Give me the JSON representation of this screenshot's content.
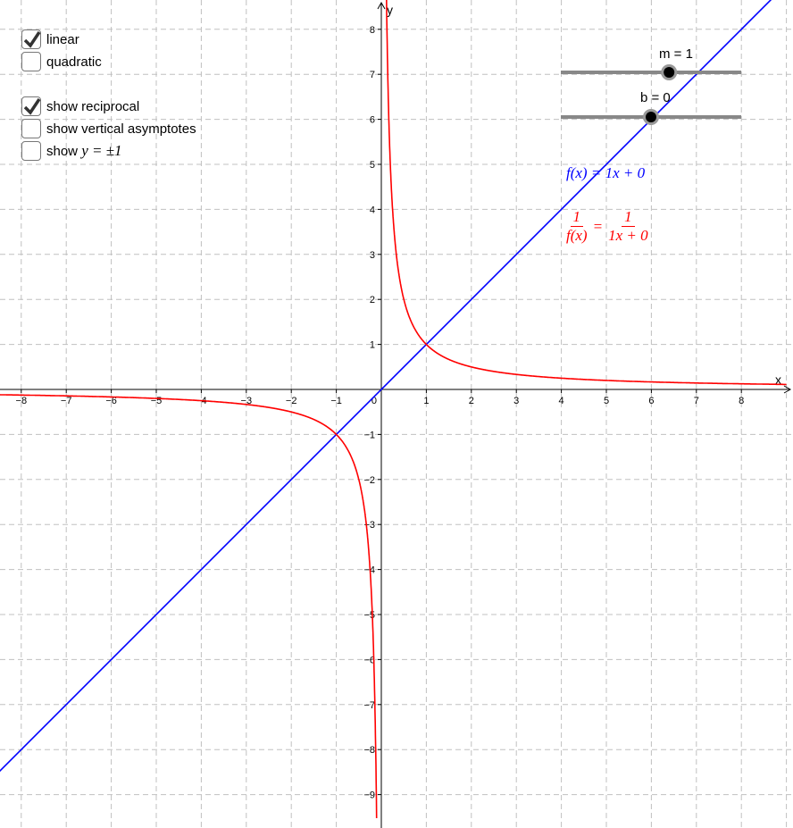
{
  "checkboxes": [
    {
      "label": "linear",
      "checked": true
    },
    {
      "label": "quadratic",
      "checked": false
    },
    {
      "label": "show reciprocal",
      "checked": true
    },
    {
      "label": "show vertical asymptotes",
      "checked": false
    },
    {
      "label": "show",
      "math": "y = ±1",
      "checked": false
    }
  ],
  "sliders": [
    {
      "label": "m = 1",
      "value": 1,
      "min": -5,
      "max": 5
    },
    {
      "label": "b = 0",
      "value": 0,
      "min": -5,
      "max": 5
    }
  ],
  "equations": {
    "f": "f(x) = 1x + 0",
    "recip_lhs_num": "1",
    "recip_lhs_den": "f(x)",
    "recip_eq": "=",
    "recip_rhs_num": "1",
    "recip_rhs_den": "1x + 0"
  },
  "axes": {
    "x_label": "x",
    "y_label": "y",
    "origin_label": "0",
    "x_range": [
      -8,
      8
    ],
    "y_range": [
      -9,
      8
    ]
  },
  "colors": {
    "line": "#0000ff",
    "reciprocal": "#ff0000",
    "grid": "#c0c0c0",
    "slider": "#888888"
  }
}
